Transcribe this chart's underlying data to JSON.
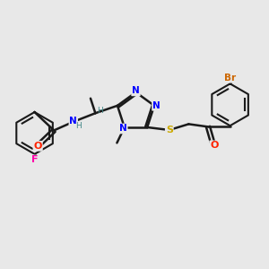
{
  "background_color": "#e8e8e8",
  "bond_color": "#1a1a1a",
  "atom_colors": {
    "N": "#0000ff",
    "O": "#ff2200",
    "S": "#ccaa00",
    "F": "#ff00aa",
    "Br": "#cc6600",
    "H": "#448888"
  },
  "figsize": [
    3.0,
    3.0
  ],
  "dpi": 100
}
